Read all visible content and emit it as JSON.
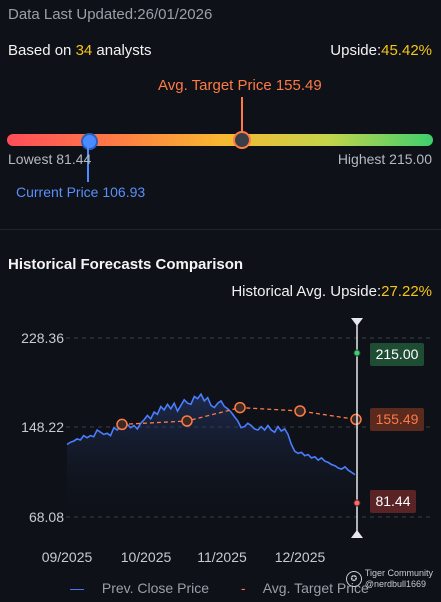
{
  "header": {
    "updated_label": "Data Last Updated:",
    "updated_value": "26/01/2026",
    "based_prefix": "Based on ",
    "analyst_count": "34",
    "based_suffix": " analysts",
    "upside_label": "Upside:",
    "upside_value": "45.42%"
  },
  "range": {
    "avg_target_label": "Avg. Target Price 155.49",
    "lowest_label": "Lowest 81.44",
    "highest_label": "Highest 215.00",
    "current_label": "Current Price 106.93",
    "lowest": 81.44,
    "highest": 215.0,
    "current": 106.93,
    "avg_target": 155.49
  },
  "history": {
    "title": "Historical Forecasts Comparison",
    "upside_label": "Historical Avg. Upside:",
    "upside_value": "27.22%"
  },
  "chart_data": {
    "type": "line",
    "y_ticks": [
      "228.36",
      "148.22",
      "68.08"
    ],
    "ylim": [
      68.08,
      228.36
    ],
    "x_ticks": [
      "09/2025",
      "10/2025",
      "11/2025",
      "12/2025"
    ],
    "series": [
      {
        "name": "Prev. Close Price",
        "color": "#4a7dff",
        "values": [
          133,
          135,
          136,
          138,
          137,
          141,
          139,
          141,
          140,
          146,
          144,
          142,
          143,
          141,
          148,
          146,
          150,
          147,
          151,
          148,
          150,
          147,
          152,
          155,
          159,
          156,
          162,
          160,
          167,
          164,
          169,
          165,
          170,
          163,
          168,
          173,
          170,
          169,
          176,
          174,
          178,
          172,
          175,
          168,
          166,
          170,
          172,
          167,
          165,
          162,
          158,
          154,
          148,
          149,
          152,
          150,
          147,
          146,
          149,
          146,
          150,
          146,
          144,
          149,
          145,
          147,
          142,
          133,
          127,
          125,
          126,
          123,
          124,
          121,
          122,
          119,
          121,
          118,
          117,
          115,
          114,
          112,
          111,
          113,
          110,
          108,
          106
        ]
      },
      {
        "name": "Avg. Target Price",
        "color": "#ff7a45",
        "dashed": true,
        "points": [
          151,
          154,
          166,
          163,
          155.49
        ]
      }
    ],
    "markers": {
      "high": "215.00",
      "avg": "155.49",
      "low": "81.44"
    },
    "colors": {
      "high_bg": "#1e4d33",
      "avg_bg": "#5a2a1e",
      "low_bg": "#5a2426"
    }
  },
  "legend": {
    "close": "Prev. Close Price",
    "target": "Avg. Target Price"
  },
  "watermark": {
    "line1": "Tiger Community",
    "line2": "@nerdbull1669"
  }
}
